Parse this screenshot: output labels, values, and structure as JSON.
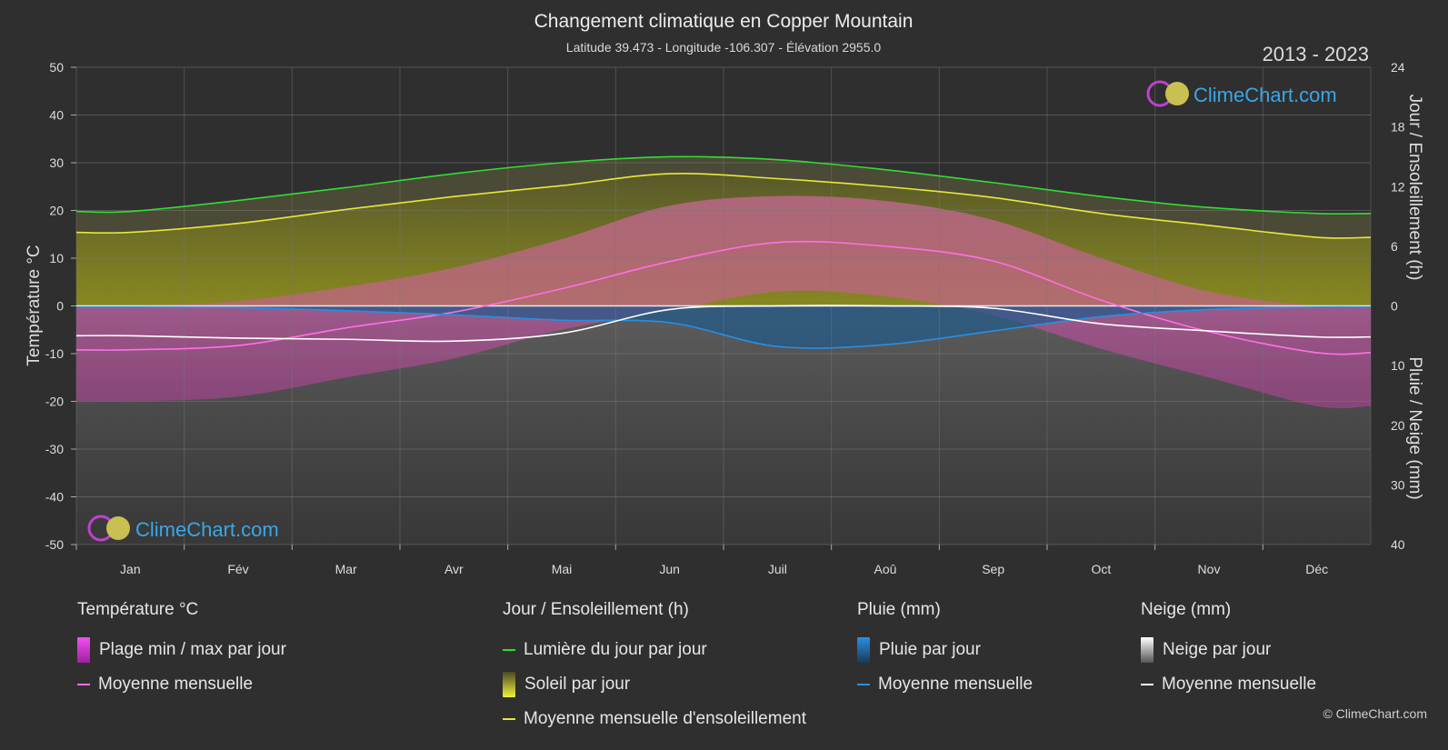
{
  "title": "Changement climatique en Copper Mountain",
  "subtitle": "Latitude 39.473 - Longitude -106.307 - Élévation 2955.0",
  "period": "2013 - 2023",
  "brand": "ClimeChart.com",
  "copyright": "© ClimeChart.com",
  "colors": {
    "background": "#2f2f2f",
    "daylight": "#33dd33",
    "sunshine_mean": "#e8e83a",
    "temp_mean": "#ff6fe6",
    "rain_mean": "#2a8fe0",
    "snow_mean": "#ffffff",
    "temp_range": "#e040c0",
    "brand_text": "#3aa6e8"
  },
  "chart_data": {
    "type": "area",
    "title": "Changement climatique en Copper Mountain",
    "x_labels": [
      "Jan",
      "Fév",
      "Mar",
      "Avr",
      "Mai",
      "Jun",
      "Juil",
      "Aoû",
      "Sep",
      "Oct",
      "Nov",
      "Déc"
    ],
    "left_axis": {
      "label": "Température °C",
      "range": [
        -50,
        50
      ],
      "ticks": [
        50,
        40,
        30,
        20,
        10,
        0,
        -10,
        -20,
        -30,
        -40,
        -50
      ]
    },
    "right_axis_top": {
      "label": "Jour / Ensoleillement (h)",
      "range": [
        0,
        24
      ],
      "ticks": [
        24,
        18,
        12,
        6,
        0
      ]
    },
    "right_axis_bottom": {
      "label": "Pluie / Neige (mm)",
      "range": [
        0,
        40
      ],
      "ticks": [
        0,
        10,
        20,
        30,
        40
      ]
    },
    "grid": true,
    "series": [
      {
        "name": "Lumière du jour par jour",
        "axis": "hours",
        "values": [
          9.5,
          10.6,
          11.9,
          13.3,
          14.4,
          15.0,
          14.7,
          13.7,
          12.4,
          11.0,
          9.9,
          9.3
        ]
      },
      {
        "name": "Moyenne mensuelle d'ensoleillement",
        "axis": "hours",
        "values": [
          7.4,
          8.3,
          9.7,
          11.0,
          12.1,
          13.3,
          12.8,
          12.0,
          10.9,
          9.3,
          8.1,
          6.9
        ]
      },
      {
        "name": "Moyenne mensuelle",
        "group": "Température °C",
        "axis": "temperature",
        "values": [
          -9.2,
          -8.3,
          -4.6,
          -1.3,
          3.6,
          9.3,
          13.3,
          12.5,
          9.4,
          1.2,
          -5.4,
          -9.8
        ]
      },
      {
        "name": "Moyenne mensuelle",
        "group": "Pluie (mm)",
        "axis": "precip",
        "values": [
          0.2,
          0.3,
          0.8,
          1.5,
          2.4,
          2.8,
          6.8,
          6.5,
          4.2,
          1.8,
          0.6,
          0.2
        ]
      },
      {
        "name": "Moyenne mensuelle",
        "group": "Neige (mm)",
        "axis": "precip",
        "values": [
          5.0,
          5.4,
          5.6,
          5.9,
          4.6,
          0.6,
          0.0,
          0.0,
          0.4,
          3.0,
          4.2,
          5.2
        ]
      },
      {
        "name": "Plage min / max par jour",
        "axis": "temperature",
        "max": [
          0,
          1,
          4,
          8,
          14,
          21,
          23,
          22,
          18,
          10,
          3,
          0
        ],
        "min": [
          -20,
          -19,
          -15,
          -11,
          -5,
          -1,
          3,
          2,
          -2,
          -9,
          -15,
          -21
        ]
      }
    ]
  },
  "legend": {
    "temperature": {
      "header": "Température °C",
      "range_label": "Plage min / max par jour",
      "mean_label": "Moyenne mensuelle"
    },
    "sun": {
      "header": "Jour / Ensoleillement (h)",
      "daylight_label": "Lumière du jour par jour",
      "sunshine_label": "Soleil par jour",
      "mean_label": "Moyenne mensuelle d'ensoleillement"
    },
    "rain": {
      "header": "Pluie (mm)",
      "daily_label": "Pluie par jour",
      "mean_label": "Moyenne mensuelle"
    },
    "snow": {
      "header": "Neige (mm)",
      "daily_label": "Neige par jour",
      "mean_label": "Moyenne mensuelle"
    }
  }
}
